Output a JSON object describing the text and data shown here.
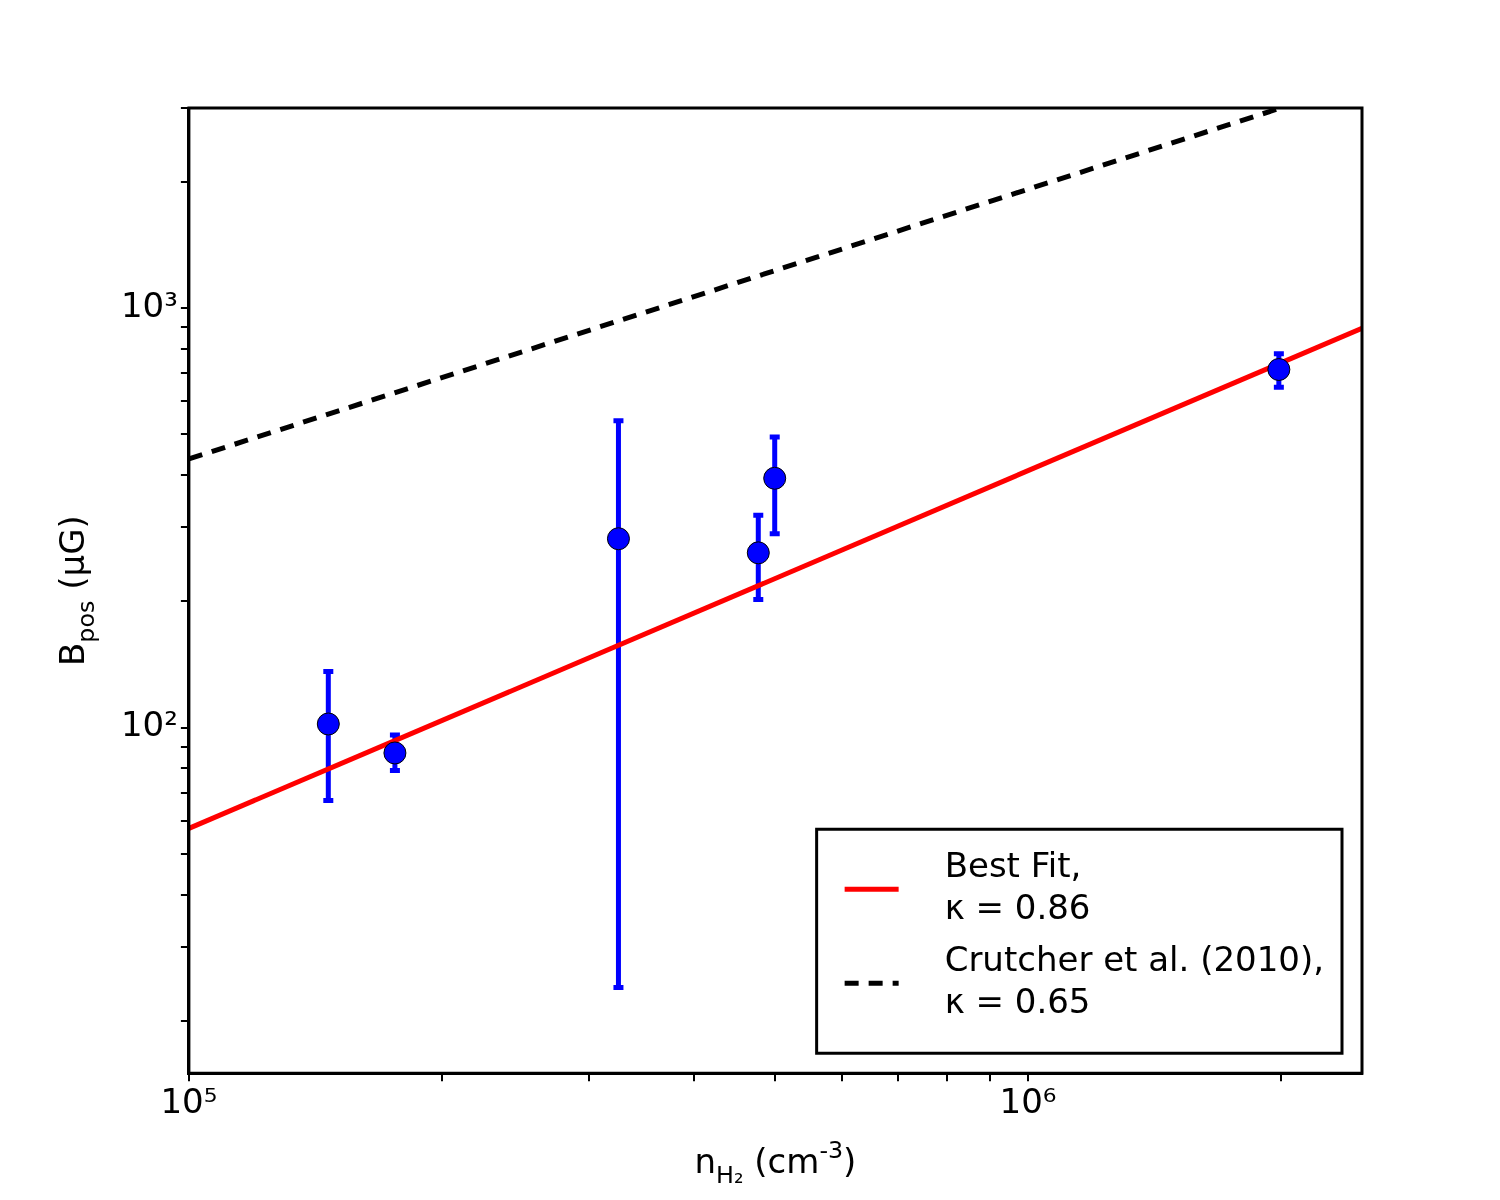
{
  "chart_data": {
    "type": "scatter",
    "xlabel": "n$_{H₂}$ (cm$^{-3}$)",
    "ylabel": "B$_{pos}$ (μG)",
    "log": "xy",
    "xlim": [
      100000,
      2500000
    ],
    "ylim": [
      15,
      3000
    ],
    "xticks": [
      {
        "value": 100000,
        "label": "10⁵"
      },
      {
        "value": 200000,
        "label": null
      },
      {
        "value": 300000,
        "label": null
      },
      {
        "value": 400000,
        "label": null
      },
      {
        "value": 500000,
        "label": null
      },
      {
        "value": 600000,
        "label": null
      },
      {
        "value": 700000,
        "label": null
      },
      {
        "value": 800000,
        "label": null
      },
      {
        "value": 900000,
        "label": null
      },
      {
        "value": 1000000,
        "label": "10⁶"
      },
      {
        "value": 2000000,
        "label": null
      }
    ],
    "yticks": [
      {
        "value": 20,
        "label": null
      },
      {
        "value": 30,
        "label": null
      },
      {
        "value": 40,
        "label": null
      },
      {
        "value": 50,
        "label": null
      },
      {
        "value": 60,
        "label": null
      },
      {
        "value": 70,
        "label": null
      },
      {
        "value": 80,
        "label": null
      },
      {
        "value": 90,
        "label": null
      },
      {
        "value": 100,
        "label": "10²"
      },
      {
        "value": 200,
        "label": null
      },
      {
        "value": 300,
        "label": null
      },
      {
        "value": 400,
        "label": null
      },
      {
        "value": 500,
        "label": null
      },
      {
        "value": 600,
        "label": null
      },
      {
        "value": 700,
        "label": null
      },
      {
        "value": 800,
        "label": null
      },
      {
        "value": 900,
        "label": null
      },
      {
        "value": 1000,
        "label": "10³"
      },
      {
        "value": 2000,
        "label": null
      },
      {
        "value": 3000,
        "label": null
      }
    ],
    "grid": false,
    "legend": "bottom right",
    "series": [
      {
        "color": "#0000ff",
        "marker": "circle",
        "x": [
          146600,
          176000,
          325000,
          477000,
          499000,
          1990000
        ],
        "values": [
          102,
          87,
          282,
          261,
          393,
          714
        ],
        "errors": [
          [
            67,
            136
          ],
          [
            79,
            96
          ],
          [
            24,
            539
          ],
          [
            202,
            321
          ],
          [
            290,
            493
          ],
          [
            648,
            779
          ]
        ]
      },
      {
        "type": "line",
        "name": "Best Fit, κ = 0.86",
        "color": "#ff0000",
        "line_style": "solid",
        "marker": "none",
        "x": [
          100000,
          2500000
        ],
        "values": [
          57.5,
          895
        ]
      },
      {
        "type": "line",
        "name": "Crutcher et al. (2010), κ = 0.65",
        "color": "#000000",
        "line_style": "dashed",
        "marker": "none",
        "x": [
          100000,
          2000000
        ],
        "values": [
          437,
          3000
        ]
      }
    ]
  }
}
